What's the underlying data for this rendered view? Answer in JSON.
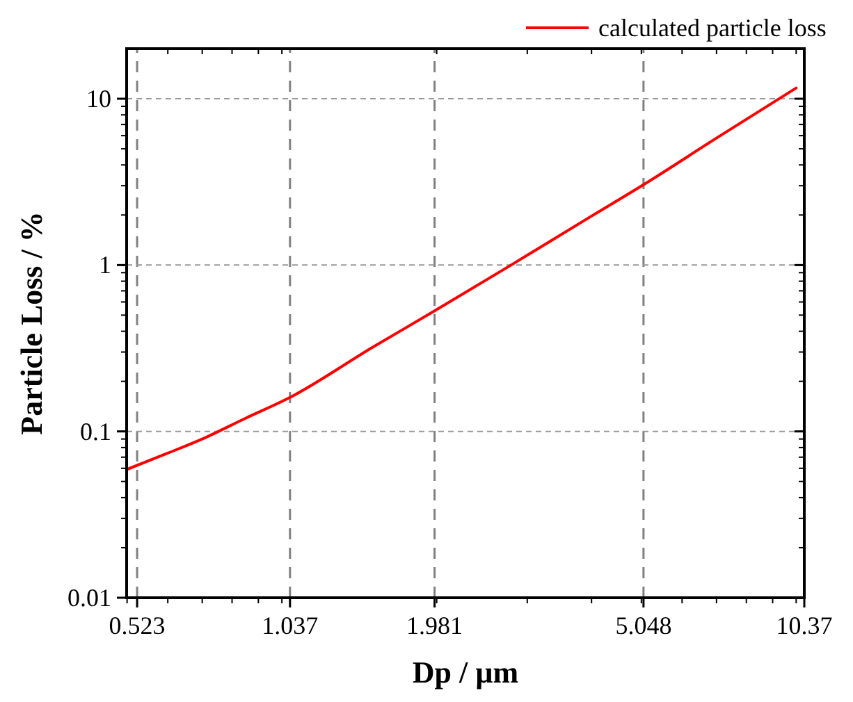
{
  "chart_data": {
    "type": "line",
    "xlabel": "Dp / µm",
    "ylabel": "Particle Loss / %",
    "log": "xy",
    "grid": true,
    "legend": "top right",
    "line_style": "solid",
    "xlim": [
      0.499,
      10.37
    ],
    "xticks": [
      0.523,
      1.037,
      1.981,
      5.048,
      10.37
    ],
    "ylim": [
      0.01,
      20
    ],
    "yticks": [
      0.01,
      0.1,
      1,
      10
    ],
    "series": [
      {
        "name": "calculated particle loss",
        "color": "#ff0000",
        "x": [
          0.499,
          0.6,
          0.7,
          0.85,
          1.037,
          1.5,
          1.981,
          2.79,
          4.0,
          5.048,
          7.0,
          10.0
        ],
        "values": [
          0.059,
          0.074,
          0.09,
          0.12,
          0.16,
          0.32,
          0.53,
          1.0,
          1.97,
          3.04,
          5.8,
          11.6
        ]
      }
    ]
  }
}
